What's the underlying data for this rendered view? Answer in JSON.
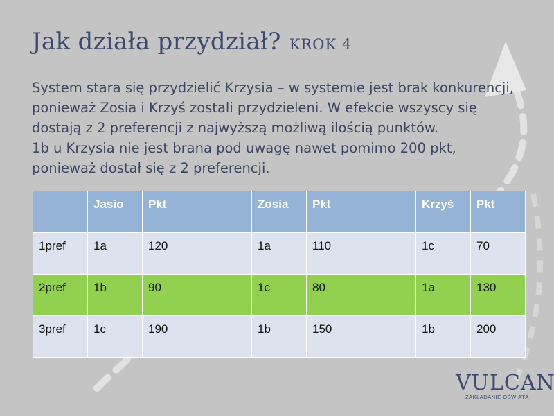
{
  "slide": {
    "title": "Jak działa przydział?",
    "step": "KROK 4",
    "lines": [
      "System stara się przydzielić Krzysia – w systemie jest brak konkurencji,",
      "ponieważ Zosia i Krzyś zostali przydzieleni. W efekcie wszyscy się",
      "dostają z 2 preferencji z najwyższą możliwą ilością punktów.",
      "1b u Krzysia nie jest brana pod uwagę nawet pomimo 200  pkt,",
      "ponieważ dostał się z 2 preferencji."
    ]
  },
  "table": {
    "header": [
      "",
      "Jasio",
      "Pkt",
      "",
      "Zosia",
      "Pkt",
      "",
      "Krzyś",
      "Pkt"
    ],
    "rows": [
      [
        "1pref",
        "1a",
        "120",
        "",
        "1a",
        "110",
        "",
        "1c",
        "70"
      ],
      [
        "2pref",
        "1b",
        "90",
        "",
        "1c",
        "80",
        "",
        "1a",
        "130"
      ],
      [
        "3pref",
        "1c",
        "190",
        "",
        "1b",
        "150",
        "",
        "1b",
        "200"
      ]
    ],
    "highlight_row_color": "#92d050",
    "header_color": "#95b3d7",
    "row_color": "#dde3ee"
  },
  "logo": {
    "word": "VULCAN",
    "tagline": "ZAKŁADANIE OŚWIATĄ"
  },
  "colors": {
    "background": "#c4c4c4",
    "title": "#3b4a6e"
  }
}
